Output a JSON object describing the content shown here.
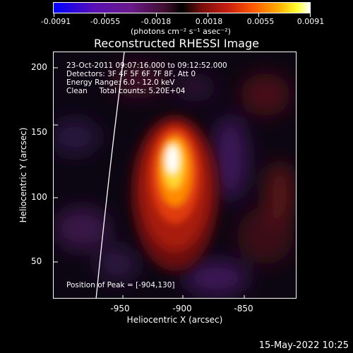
{
  "colorbar": {
    "tick_labels": [
      "-0.0091",
      "-0.0055",
      "-0.0018",
      "0.0018",
      "0.0055",
      "0.0091"
    ],
    "units": "(photons cm⁻² s⁻¹ asec⁻²)"
  },
  "title": "Reconstructed RHESSI Image",
  "info": {
    "time_range": "23-Oct-2011 09:07:16.000 to 09:12:52.000",
    "detectors": "Detectors: 3F 4F 5F 6F 7F 8F, Att 0",
    "energy": "Energy Range: 6.0 - 12.0 keV",
    "method": "Clean     Total counts: 5.20E+04",
    "peak": "Position of Peak = [-904,130]"
  },
  "axes": {
    "x_ticks": [
      "-950",
      "-900",
      "-850"
    ],
    "y_ticks": [
      "50",
      "100",
      "150",
      "200"
    ],
    "xlabel": "Heliocentric X (arcsec)",
    "ylabel": "Heliocentric Y (arcsec)"
  },
  "timestamp": "15-May-2022 10:25"
}
